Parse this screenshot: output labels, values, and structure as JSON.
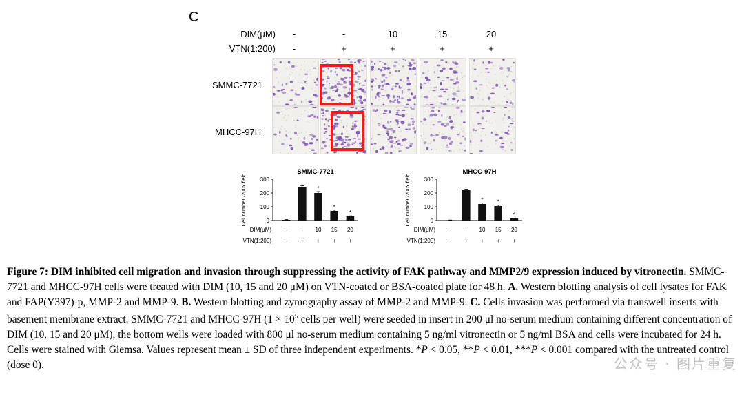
{
  "panel_letter": "C",
  "header_rows": [
    {
      "label": "DIM(μM)",
      "values": [
        "-",
        "-",
        "10",
        "15",
        "20"
      ]
    },
    {
      "label": "VTN(1:200)",
      "values": [
        "-",
        "+",
        "+",
        "+",
        "+"
      ]
    }
  ],
  "image_rows": [
    {
      "label": "SMMC-7721",
      "densities": [
        0.3,
        1.0,
        0.8,
        0.45,
        0.25
      ]
    },
    {
      "label": "MHCC-97H",
      "densities": [
        0.25,
        1.0,
        0.65,
        0.4,
        0.3
      ]
    }
  ],
  "chart_data": [
    {
      "type": "bar",
      "title": "SMMC-7721",
      "ylabel": "Cell number /200x field",
      "ylim": [
        0,
        300
      ],
      "yticks": [
        "0",
        "100",
        "200",
        "300"
      ],
      "categories": [
        "1",
        "2",
        "3",
        "4",
        "5"
      ],
      "values": [
        5,
        245,
        200,
        70,
        30
      ],
      "errors": [
        2,
        8,
        10,
        6,
        4
      ],
      "significance": [
        "",
        "",
        "*",
        "*",
        "*"
      ],
      "factor_rows": [
        {
          "label": "DIM(μM)",
          "values": [
            "-",
            "-",
            "10",
            "15",
            "20"
          ]
        },
        {
          "label": "VTN(1:200)",
          "values": [
            "-",
            "+",
            "+",
            "+",
            "+"
          ]
        }
      ]
    },
    {
      "type": "bar",
      "title": "MHCC-97H",
      "ylabel": "Cell number /200x field",
      "ylim": [
        0,
        300
      ],
      "yticks": [
        "0",
        "100",
        "200",
        "300"
      ],
      "categories": [
        "1",
        "2",
        "3",
        "4",
        "5"
      ],
      "values": [
        3,
        220,
        120,
        105,
        15
      ],
      "errors": [
        1,
        8,
        8,
        7,
        3
      ],
      "significance": [
        "",
        "",
        "*",
        "*",
        "*"
      ],
      "factor_rows": [
        {
          "label": "DIM(μM)",
          "values": [
            "-",
            "-",
            "10",
            "15",
            "20"
          ]
        },
        {
          "label": "VTN(1:200)",
          "values": [
            "-",
            "+",
            "+",
            "+",
            "+"
          ]
        }
      ]
    }
  ],
  "caption": {
    "title": "Figure 7: DIM inhibited cell migration and invasion through suppressing the activity of FAK pathway and MMP2/9 expression induced by vitronectin.",
    "p1": " SMMC-7721 and MHCC-97H cells were treated with DIM (10, 15 and 20 μM) on VTN-coated or BSA-coated plate for 48 h. ",
    "a_label": "A.",
    "p2": " Western blotting analysis of cell lysates for FAK and FAP(Y397)-p, MMP-2 and MMP-9. ",
    "b_label": "B.",
    "p3": " Western blotting and zymography assay of MMP-2 and MMP-9. ",
    "c_label": "C.",
    "p4": " Cells invasion was performed via transwell inserts with basement membrane extract. SMMC-7721 and MHCC-97H (1 × 10",
    "sup": "5",
    "p5": " cells per well) were seeded in insert in 200 μl no-serum medium containing different concentration of DIM (10, 15 and 20 μM), the bottom wells were loaded with 800 μl no-serum medium containing 5 ng/ml vitronectin or 5 ng/ml BSA and cells were incubated for 24 h. Cells were stained with Giemsa. Values represent mean ± SD of three independent experiments. *",
    "p_italic1": "P",
    "p6": " < 0.05, **",
    "p_italic2": "P",
    "p7": " < 0.01, ***",
    "p_italic3": "P",
    "p8": " < 0.001 compared with the untreated control (dose 0)."
  },
  "watermark": "公众号 · 图片重复",
  "colors": {
    "stain": "#7a4fb0",
    "box": "#ea1c1c",
    "bar": "#111111"
  }
}
